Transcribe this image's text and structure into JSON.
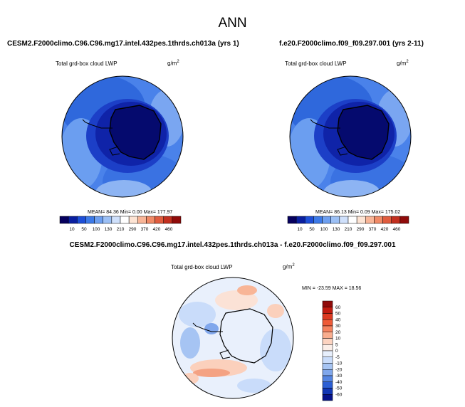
{
  "main_title": "ANN",
  "panels": [
    {
      "case_title": "CESM2.F2000climo.C96.C96.mg17.intel.432pes.1thrds.ch013a (yrs 1)",
      "variable_label": "Total grd-box cloud LWP",
      "units": "g/m",
      "units_exponent": "2",
      "stats": "MEAN= 84.36  Min=  0.00  Max= 177.97"
    },
    {
      "case_title": "f.e20.F2000climo.f09_f09.297.001 (yrs 2-11)",
      "variable_label": "Total grd-box cloud LWP",
      "units": "g/m",
      "units_exponent": "2",
      "stats": "MEAN= 86.13  Min=  0.09  Max= 175.02"
    }
  ],
  "colorbar": {
    "labels": [
      "10",
      "50",
      "100",
      "130",
      "210",
      "290",
      "370",
      "420",
      "460"
    ],
    "colors": [
      "#06005e",
      "#0a1fa0",
      "#1e4fd8",
      "#3d7ae8",
      "#6d9ff0",
      "#9cc0f5",
      "#cfe0fb",
      "#ffffff",
      "#fde4d4",
      "#f8b597",
      "#f08a66",
      "#e05c3e",
      "#c22f1f",
      "#900b0a"
    ]
  },
  "difference": {
    "title": "CESM2.F2000climo.C96.C96.mg17.intel.432pes.1thrds.ch013a - f.e20.F2000climo.f09_f09.297.001",
    "variable_label": "Total grd-box cloud LWP",
    "units": "g/m",
    "units_exponent": "2",
    "stats": "MIN = -23.59 MAX =  18.56",
    "colorbar": {
      "labels": [
        "60",
        "50",
        "40",
        "30",
        "20",
        "10",
        "5",
        "0",
        "-5",
        "-10",
        "-20",
        "-30",
        "-40",
        "-50",
        "-60"
      ],
      "colors": [
        "#900b0a",
        "#c11b10",
        "#dc3a22",
        "#ee5b38",
        "#f58360",
        "#f9ad8e",
        "#fcd3c0",
        "#fbeee8",
        "#e7effc",
        "#c9dcfa",
        "#a6c4f3",
        "#80a7ec",
        "#5585e2",
        "#2c5fd4",
        "#1136b4",
        "#06128a"
      ]
    }
  }
}
